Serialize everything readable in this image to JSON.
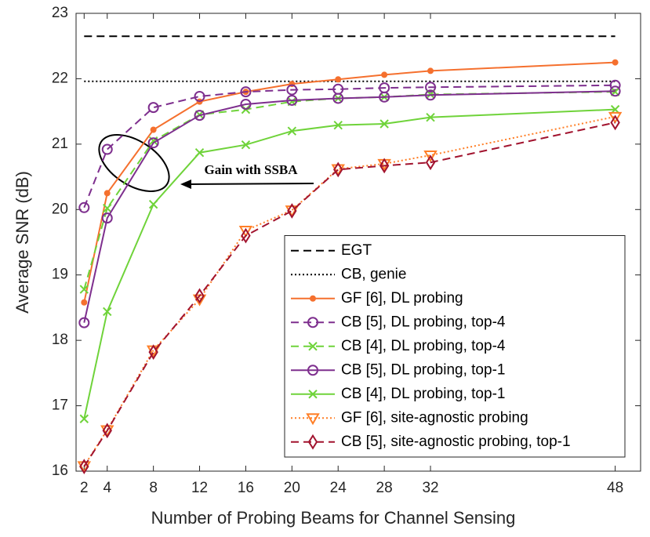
{
  "chart_data": {
    "type": "line",
    "xlabel": "Number of Probing Beams for Channel Sensing",
    "ylabel": "Average SNR (dB)",
    "annotation": "Gain with SSBA",
    "x": [
      2,
      4,
      8,
      12,
      16,
      20,
      24,
      28,
      32,
      48
    ],
    "xlim": [
      1.3,
      50.2
    ],
    "xticks": [
      2,
      4,
      8,
      12,
      16,
      20,
      24,
      28,
      32,
      48
    ],
    "ylim": [
      16,
      23
    ],
    "yticks": [
      16,
      17,
      18,
      19,
      20,
      21,
      22,
      23
    ],
    "grid": false,
    "legend_position": "lower-right",
    "series": [
      {
        "name": "EGT",
        "color": "#000000",
        "dash": "dashed",
        "values": [
          22.65,
          22.65,
          22.65,
          22.65,
          22.65,
          22.65,
          22.65,
          22.65,
          22.65,
          22.65
        ]
      },
      {
        "name": "CB, genie",
        "color": "#000000",
        "dash": "dotted",
        "values": [
          21.96,
          21.96,
          21.96,
          21.96,
          21.96,
          21.96,
          21.96,
          21.96,
          21.96,
          21.96
        ]
      },
      {
        "name": "GF [6], DL probing",
        "color": "#f5702e",
        "dash": "solid",
        "marker": "dot",
        "values": [
          18.58,
          20.25,
          21.22,
          21.65,
          21.8,
          21.92,
          21.99,
          22.06,
          22.12,
          22.25
        ]
      },
      {
        "name": "CB [5], DL probing, top-4",
        "color": "#7e2f8e",
        "dash": "dashed",
        "marker": "circle",
        "values": [
          20.03,
          20.92,
          21.56,
          21.73,
          21.8,
          21.83,
          21.84,
          21.86,
          21.87,
          21.9
        ]
      },
      {
        "name": "CB [4], DL probing, top-4",
        "color": "#6fd33a",
        "dash": "dashed",
        "marker": "x",
        "values": [
          18.78,
          20.02,
          21.05,
          21.45,
          21.53,
          21.65,
          21.7,
          21.72,
          21.76,
          21.8
        ]
      },
      {
        "name": "CB [5], DL probing, top-1",
        "color": "#7e2f8e",
        "dash": "solid",
        "marker": "circle",
        "values": [
          18.27,
          19.87,
          21.02,
          21.44,
          21.61,
          21.67,
          21.7,
          21.72,
          21.75,
          21.81
        ]
      },
      {
        "name": "CB [4], DL probing, top-1",
        "color": "#6fd33a",
        "dash": "solid",
        "marker": "x",
        "values": [
          16.8,
          18.44,
          20.08,
          20.87,
          20.99,
          21.2,
          21.29,
          21.31,
          21.41,
          21.53
        ]
      },
      {
        "name": "GF [6], site-agnostic probing",
        "color": "#ff7f27",
        "dash": "dotted",
        "marker": "triangle",
        "values": [
          16.08,
          16.63,
          17.85,
          18.63,
          19.68,
          19.99,
          20.62,
          20.7,
          20.83,
          21.42
        ]
      },
      {
        "name": "CB [5], site-agnostic probing, top-1",
        "color": "#a2142f",
        "dash": "dashed",
        "marker": "diamond",
        "values": [
          16.07,
          16.62,
          17.82,
          18.68,
          19.6,
          19.98,
          20.61,
          20.67,
          20.72,
          21.33
        ]
      }
    ]
  }
}
